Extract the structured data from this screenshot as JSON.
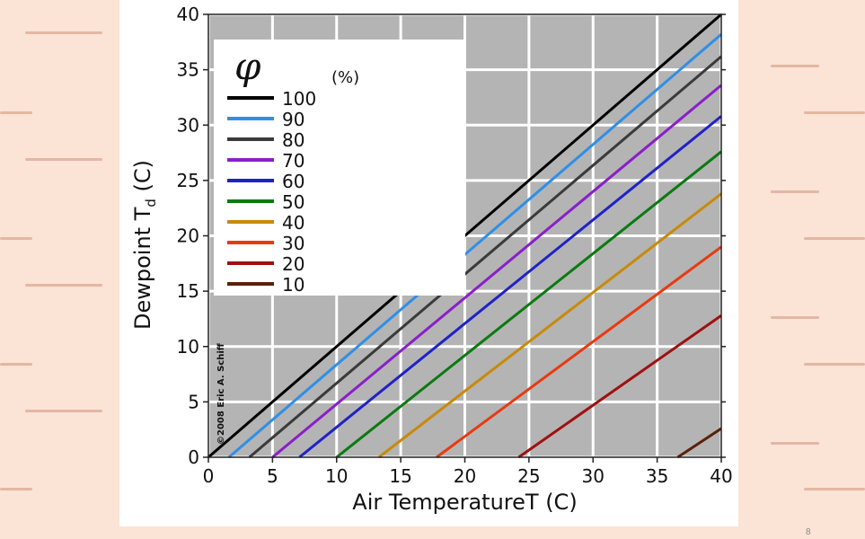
{
  "slide": {
    "page_number": "8"
  },
  "chart_data": {
    "type": "line",
    "xlabel": "Air TemperatureT (C)",
    "ylabel_main": "Dewpoint T",
    "ylabel_sub": "d",
    "ylabel_unit": " (C)",
    "xlim": [
      0,
      40
    ],
    "ylim": [
      0,
      40
    ],
    "xticks": [
      0,
      5,
      10,
      15,
      20,
      25,
      30,
      35,
      40
    ],
    "yticks": [
      0,
      5,
      10,
      15,
      20,
      25,
      30,
      35,
      40
    ],
    "grid": true,
    "legend": {
      "placement": "top-left",
      "title": "φ",
      "unit": "(%)"
    },
    "copyright": "©2008 Eric A. Schiff",
    "series": [
      {
        "name": "100",
        "color": "#000000",
        "x": [
          0,
          40
        ],
        "y": [
          0,
          40
        ]
      },
      {
        "name": "90",
        "color": "#2f8fe6",
        "x": [
          1.6,
          40
        ],
        "y": [
          0,
          38.2
        ]
      },
      {
        "name": "80",
        "color": "#3a3a3a",
        "x": [
          3.2,
          40
        ],
        "y": [
          0,
          36.2
        ]
      },
      {
        "name": "70",
        "color": "#8a1fc8",
        "x": [
          5,
          40
        ],
        "y": [
          0,
          33.6
        ]
      },
      {
        "name": "60",
        "color": "#1f22c8",
        "x": [
          7.1,
          40
        ],
        "y": [
          0,
          30.8
        ]
      },
      {
        "name": "50",
        "color": "#0a7a10",
        "x": [
          10,
          40
        ],
        "y": [
          0,
          27.6
        ]
      },
      {
        "name": "40",
        "color": "#c88a0a",
        "x": [
          13.3,
          40
        ],
        "y": [
          0,
          23.8
        ]
      },
      {
        "name": "30",
        "color": "#e83a10",
        "x": [
          17.8,
          40
        ],
        "y": [
          0,
          19.0
        ]
      },
      {
        "name": "20",
        "color": "#a01010",
        "x": [
          24.2,
          40
        ],
        "y": [
          0,
          12.8
        ]
      },
      {
        "name": "10",
        "color": "#5a200a",
        "x": [
          36.6,
          40
        ],
        "y": [
          0,
          2.6
        ]
      }
    ]
  }
}
